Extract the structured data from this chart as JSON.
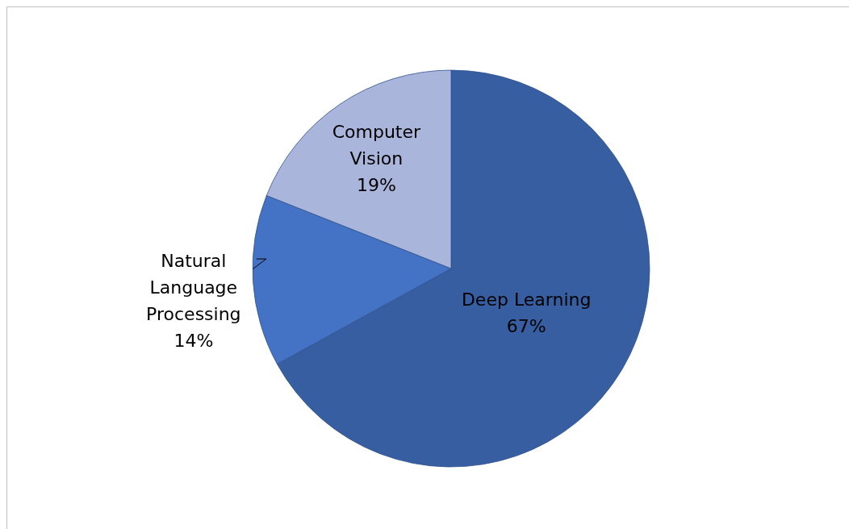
{
  "chart_data": {
    "type": "pie",
    "categories": [
      "Deep Learning",
      "Natural Language Processing",
      "Computer Vision"
    ],
    "values": [
      67,
      14,
      19
    ],
    "value_labels": [
      "67%",
      "14%",
      "19%"
    ],
    "colors": [
      "#375ea1",
      "#4472c4",
      "#a9b5da"
    ]
  }
}
